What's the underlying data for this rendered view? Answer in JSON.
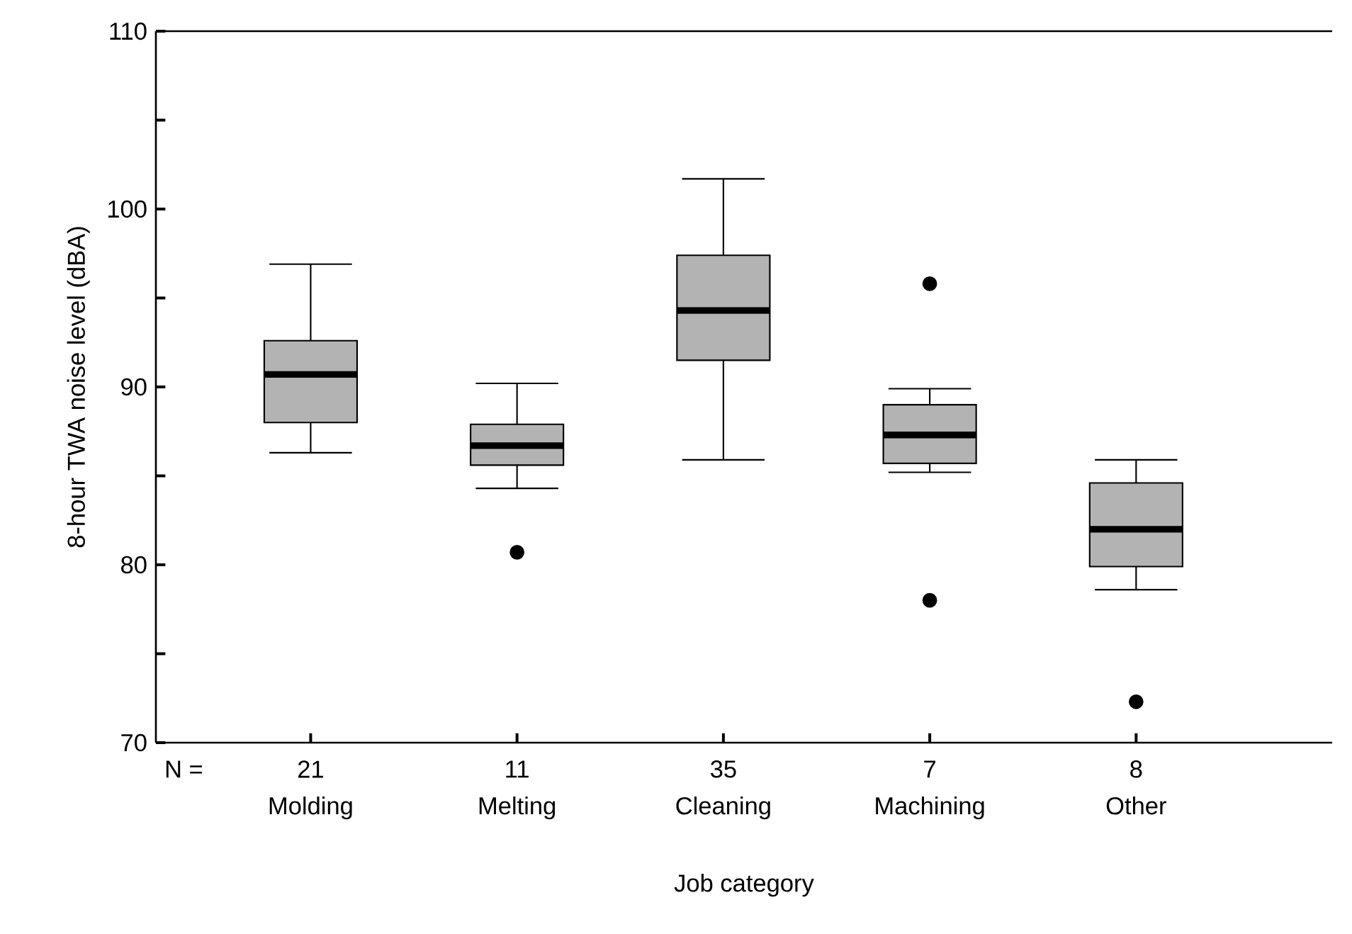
{
  "chart_data": {
    "type": "box",
    "xlabel": "Job category",
    "ylabel": "8-hour TWA noise level (dBA)",
    "categories": [
      "Molding",
      "Melting",
      "Cleaning",
      "Machining",
      "Other"
    ],
    "boxes": [
      {
        "low": 86.3,
        "q1": 88.0,
        "median": 90.7,
        "q3": 92.6,
        "high": 96.9
      },
      {
        "low": 84.3,
        "q1": 85.6,
        "median": 86.7,
        "q3": 87.9,
        "high": 90.2,
        "outliers": [
          80.7
        ]
      },
      {
        "low": 85.9,
        "q1": 91.5,
        "median": 94.3,
        "q3": 97.4,
        "high": 101.7
      },
      {
        "low": 85.2,
        "q1": 85.7,
        "median": 87.3,
        "q3": 89.0,
        "high": 89.9,
        "outliers": [
          95.8,
          78.0
        ]
      },
      {
        "low": 78.6,
        "q1": 79.9,
        "median": 82.0,
        "q3": 84.6,
        "high": 85.9,
        "outliers": [
          72.3
        ]
      }
    ],
    "color": "#b3b3b3",
    "ylim": [
      70,
      110
    ],
    "yticks": [
      70,
      {
        "value": 75,
        "label": null
      },
      80,
      {
        "value": 85,
        "label": null
      },
      90,
      {
        "value": 95,
        "label": null
      },
      100,
      {
        "value": 105,
        "label": null
      },
      110
    ],
    "annotations": [
      "N =",
      "21",
      "11",
      "35",
      "7",
      "8"
    ]
  }
}
